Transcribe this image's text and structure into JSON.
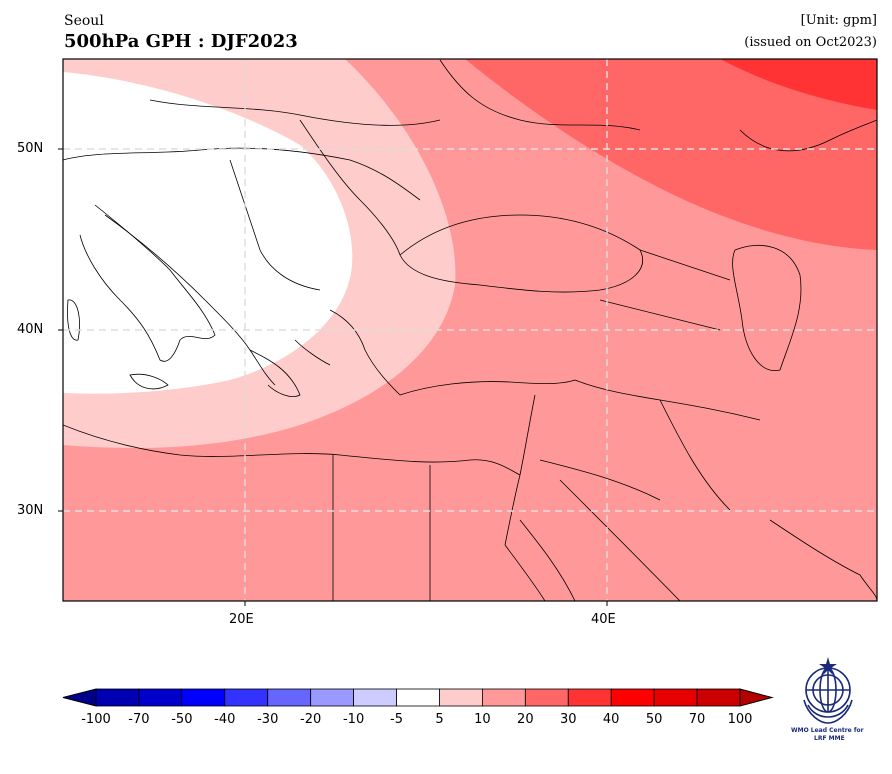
{
  "header": {
    "org": "Seoul",
    "title": "500hPa GPH : DJF2023",
    "unit": "[Unit: gpm]",
    "issued": "(issued on Oct2023)"
  },
  "map": {
    "region_lon": [
      10,
      55
    ],
    "region_lat": [
      25,
      55
    ],
    "lon_ticks": [
      "20E",
      "40E"
    ],
    "lat_ticks": [
      "50N",
      "40N",
      "30N"
    ],
    "gridlines": true,
    "anomaly_pattern": "positive anomaly over the whole domain; weakest (-5 to 5 gpm, white) over the central Mediterranean and Balkans, increasing eastward to 30-40 gpm over the Caspian/Russia region",
    "anomaly_bands": [
      {
        "range": "-5 to 5",
        "color": "#ffffff",
        "region": "central Mediterranean, Italy, Balkans"
      },
      {
        "range": "5 to 10",
        "color": "#ffcccc",
        "region": "ring around the minimum: Black Sea west coast, Aegean, Ionian Sea"
      },
      {
        "range": "10 to 20",
        "color": "#ff9999",
        "region": "Turkey, Middle East, North Africa, Arabian Peninsula, eastern Europe"
      },
      {
        "range": "20 to 30",
        "color": "#ff6666",
        "region": "Russia north of the Caucasus, Caspian Sea"
      },
      {
        "range": "30 to 40",
        "color": "#ff3333",
        "region": "far north-east corner"
      }
    ]
  },
  "colorbar": {
    "labels": [
      "-100",
      "-70",
      "-50",
      "-40",
      "-30",
      "-20",
      "-10",
      "-5",
      "5",
      "10",
      "20",
      "30",
      "40",
      "50",
      "70",
      "100"
    ],
    "colors": [
      "#0000b3",
      "#0000cc",
      "#0000ff",
      "#3333ff",
      "#6666ff",
      "#9999ff",
      "#ccccff",
      "#ffffff",
      "#ffcccc",
      "#ff9999",
      "#ff6666",
      "#ff3333",
      "#ff0000",
      "#e60000",
      "#cc0000"
    ],
    "under_color": "#00008b",
    "over_color": "#b30000"
  },
  "logo": {
    "line1": "WMO Lead Centre for",
    "line2": "LRF MME"
  }
}
